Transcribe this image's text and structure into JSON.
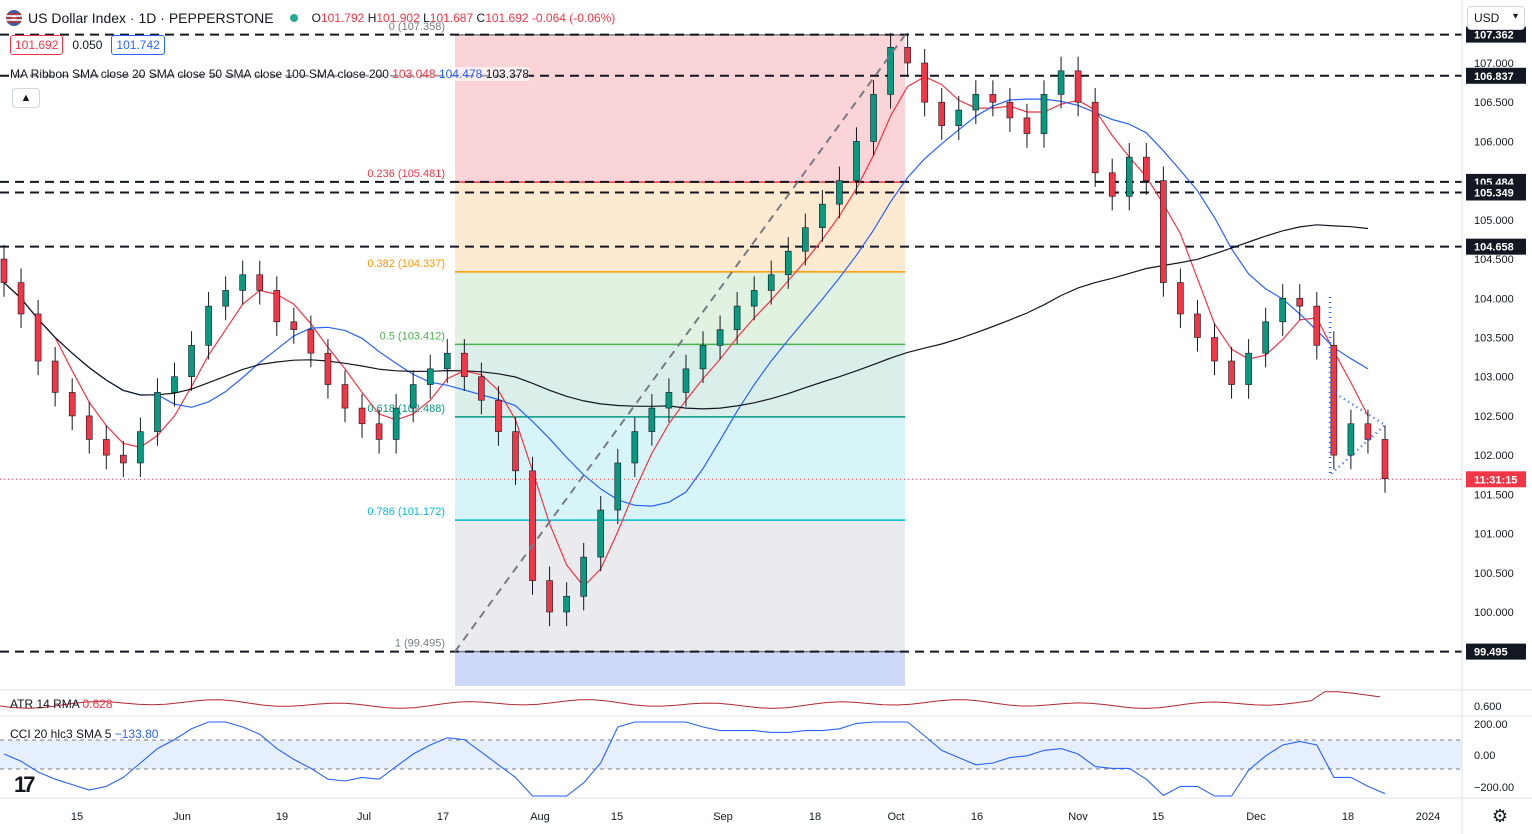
{
  "header": {
    "symbol_title": "US Dollar Index · 1D · PEPPERSTONE",
    "ohlc": {
      "open_label": "O",
      "open": "101.792",
      "high_label": "H",
      "high": "101.902",
      "low_label": "L",
      "low": "101.687",
      "close_label": "C",
      "close": "101.692",
      "change": "-0.064 (-0.06%)"
    }
  },
  "trade": {
    "sell": "101.692",
    "spread": "0.050",
    "buy": "101.742"
  },
  "indicators": {
    "ma_ribbon_label": "MA Ribbon SMA close 20 SMA close 50 SMA close 100 SMA close 200",
    "ma_val_1": "103.048",
    "ma_val_2": "104.478",
    "ma_val_3": "103.378",
    "atr_label": "ATR 14 RMA",
    "atr_value": "0.628",
    "cci_label": "CCI 20 hlc3 SMA 5",
    "cci_value": "−133.80"
  },
  "currency": "USD",
  "price_axis": {
    "ticks": [
      "107.000",
      "106.500",
      "106.000",
      "105.000",
      "104.500",
      "104.000",
      "103.500",
      "103.000",
      "102.500",
      "102.000",
      "101.500",
      "101.000",
      "100.500",
      "100.000"
    ],
    "tags": [
      {
        "label": "107.362",
        "value": 107.362
      },
      {
        "label": "106.837",
        "value": 106.837
      },
      {
        "label": "105.484",
        "value": 105.484
      },
      {
        "label": "105.349",
        "value": 105.349
      },
      {
        "label": "104.658",
        "value": 104.658
      },
      {
        "label": "99.495",
        "value": 99.495
      }
    ],
    "countdown": "11:31:15",
    "atr_tick": "0.600",
    "cci_ticks": [
      "200.00",
      "0.00",
      "−200.00"
    ]
  },
  "time_axis": [
    "15",
    "Jun",
    "19",
    "Jul",
    "17",
    "Aug",
    "15",
    "Sep",
    "18",
    "Oct",
    "16",
    "Nov",
    "15",
    "Dec",
    "18",
    "2024"
  ],
  "fib_levels": [
    {
      "label": "0 (107.358)",
      "value": 107.358,
      "color": "#787b86"
    },
    {
      "label": "0.236 (105.481)",
      "value": 105.481,
      "color": "#f23645"
    },
    {
      "label": "0.382 (104.337)",
      "value": 104.337,
      "color": "#ff9800"
    },
    {
      "label": "0.5 (103.412)",
      "value": 103.412,
      "color": "#4caf50"
    },
    {
      "label": "0.618 (102.488)",
      "value": 102.488,
      "color": "#089981"
    },
    {
      "label": "0.786 (101.172)",
      "value": 101.172,
      "color": "#00bcd4"
    },
    {
      "label": "1 (99.495)",
      "value": 99.495,
      "color": "#787b86"
    }
  ],
  "colors": {
    "up": "#089981",
    "down": "#f23645",
    "sma20": "#f23645",
    "sma50": "#2962ff",
    "sma200": "#131722",
    "cci": "#2962ff",
    "atr": "#b22833"
  },
  "chart_data": {
    "type": "candlestick",
    "symbol": "US Dollar Index",
    "timeframe": "1D",
    "series": [
      {
        "name": "candles",
        "close_path": [
          104.2,
          103.8,
          103.2,
          102.8,
          102.5,
          102.2,
          102.0,
          101.9,
          102.3,
          102.8,
          103.0,
          103.4,
          103.9,
          104.1,
          104.3,
          104.1,
          103.7,
          103.6,
          103.3,
          102.9,
          102.6,
          102.4,
          102.2,
          102.6,
          102.9,
          103.1,
          103.3,
          103.0,
          102.7,
          102.3,
          101.8,
          100.4,
          100.0,
          100.2,
          100.7,
          101.3,
          101.9,
          102.3,
          102.6,
          102.8,
          103.1,
          103.4,
          103.6,
          103.9,
          104.1,
          104.3,
          104.6,
          104.9,
          105.2,
          105.5,
          106.0,
          106.6,
          107.2,
          107.0,
          106.5,
          106.2,
          106.4,
          106.6,
          106.5,
          106.3,
          106.1,
          106.6,
          106.9,
          106.5,
          105.6,
          105.3,
          105.8,
          105.5,
          104.2,
          103.8,
          103.5,
          103.2,
          102.9,
          103.3,
          103.7,
          104.0,
          103.9,
          103.4,
          102.0,
          102.4,
          102.2,
          101.7
        ]
      }
    ],
    "sma_20_last": 103.048,
    "sma_50_last": 104.478,
    "sma_200_last": 103.378,
    "horizontal_levels": [
      107.362,
      106.837,
      105.484,
      105.349,
      104.658,
      99.495
    ],
    "fib_retracement": {
      "start": 99.495,
      "end": 107.358
    },
    "ylim": [
      99.2,
      107.6
    ],
    "atr_14": 0.628,
    "cci_20": -133.8
  }
}
